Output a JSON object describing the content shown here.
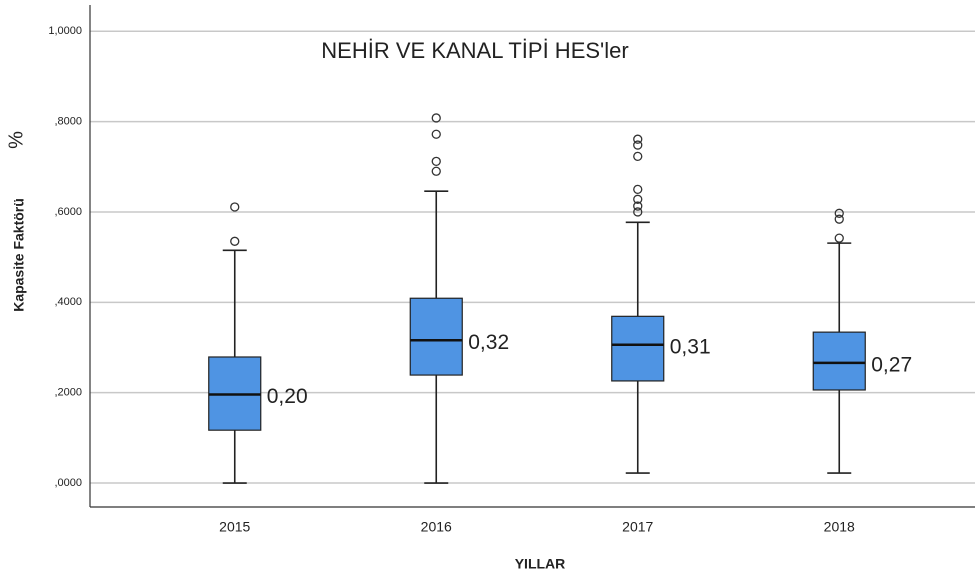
{
  "chart_data": {
    "type": "box",
    "title": "NEHİR VE KANAL TİPİ HES'ler",
    "x_label": "YILLAR",
    "y_label": "Kapasite Faktörü",
    "y_unit": "%",
    "categories": [
      "2015",
      "2016",
      "2017",
      "2018"
    ],
    "color": "#4f94e3",
    "whisker_low": [
      0,
      0,
      0.022,
      0.022
    ],
    "q1": [
      0.117,
      0.239,
      0.226,
      0.206
    ],
    "median": [
      0.196,
      0.316,
      0.306,
      0.266
    ],
    "q3": [
      0.279,
      0.409,
      0.369,
      0.334
    ],
    "whisker_high": [
      0.515,
      0.646,
      0.577,
      0.531
    ],
    "outliers": [
      [
        0.535,
        0.611
      ],
      [
        0.69,
        0.712,
        0.772,
        0.808
      ],
      [
        0.6,
        0.613,
        0.628,
        0.65,
        0.723,
        0.748,
        0.761
      ],
      [
        0.542,
        0.584,
        0.597
      ]
    ],
    "median_labels": [
      "0,20",
      "0,32",
      "0,31",
      "0,27"
    ],
    "ylim": [
      -0.053,
      1.058
    ],
    "yticks": [
      {
        "value": 0,
        "label": ",0000"
      },
      {
        "value": 0.2,
        "label": ",2000"
      },
      {
        "value": 0.4,
        "label": ",4000"
      },
      {
        "value": 0.6,
        "label": ",6000"
      },
      {
        "value": 0.8,
        "label": ",8000"
      },
      {
        "value": 1,
        "label": "1,0000"
      }
    ],
    "grid": true
  }
}
